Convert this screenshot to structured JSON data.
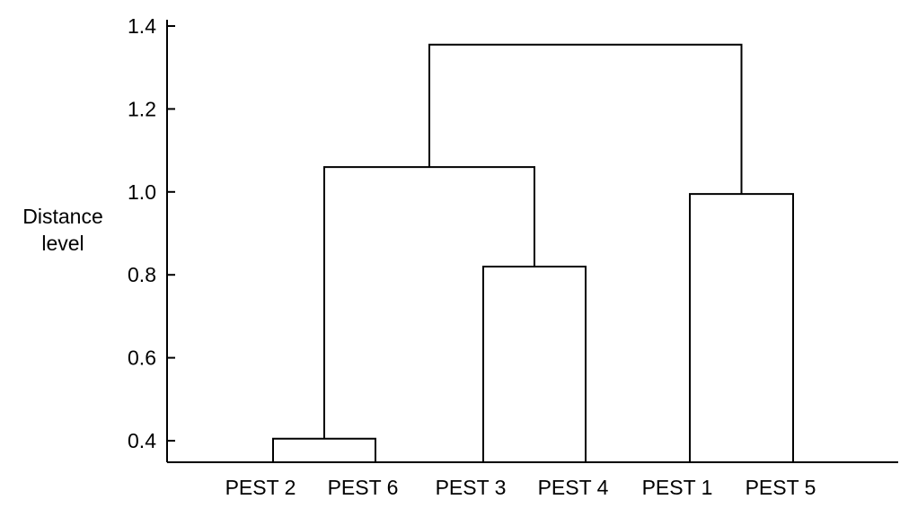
{
  "chart_data": {
    "type": "dendrogram",
    "title": "",
    "xlabel": "",
    "ylabel_line1": "Distance",
    "ylabel_line2": "level",
    "ylim": [
      0.35,
      1.4
    ],
    "y_ticks": [
      0.4,
      0.6,
      0.8,
      1.0,
      1.2,
      1.4
    ],
    "y_tick_labels": [
      "0.4",
      "0.6",
      "0.8",
      "1.0",
      "1.2",
      "1.4"
    ],
    "grid": false,
    "leaves": [
      "PEST 2",
      "PEST 6",
      "PEST 3",
      "PEST 4",
      "PEST 1",
      "PEST 5"
    ],
    "merges": [
      {
        "left": "PEST 2",
        "right": "PEST 6",
        "height": 0.405
      },
      {
        "left": "PEST 3",
        "right": "PEST 4",
        "height": 0.82
      },
      {
        "left": "PEST 1",
        "right": "PEST 5",
        "height": 0.995
      },
      {
        "left": "PEST 2 + PEST 6",
        "right": "PEST 3 + PEST 4",
        "height": 1.06
      },
      {
        "left": "PEST 2 + PEST 6 + PEST 3 + PEST 4",
        "right": "PEST 1 + PEST 5",
        "height": 1.355
      }
    ]
  }
}
